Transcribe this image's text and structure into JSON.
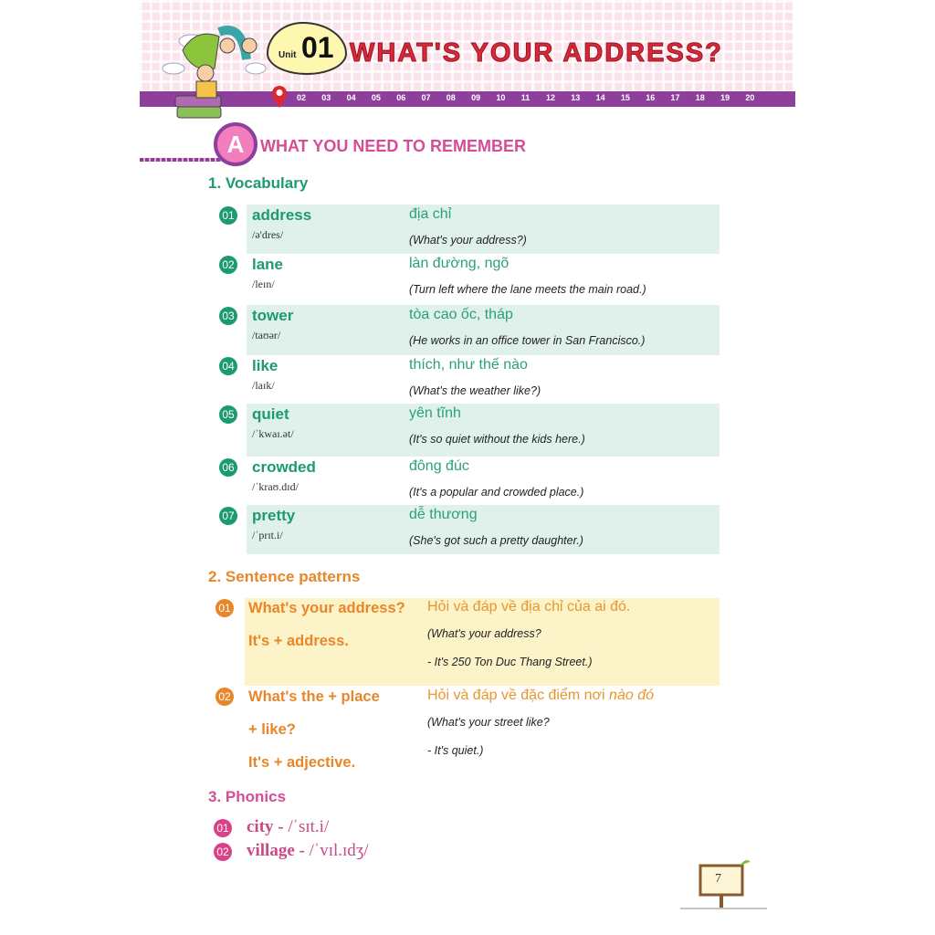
{
  "header": {
    "unit_word": "Unit",
    "unit_number": "01",
    "title": "WHAT'S YOUR ADDRESS?",
    "timeline": [
      "02",
      "03",
      "04",
      "05",
      "06",
      "07",
      "08",
      "09",
      "10",
      "11",
      "12",
      "13",
      "14",
      "15",
      "16",
      "17",
      "18",
      "19",
      "20"
    ],
    "accent_colors": {
      "pink": "#d44d96",
      "purple": "#8e3f9c",
      "red": "#d42a3a"
    }
  },
  "section": {
    "letter": "A",
    "title": "WHAT YOU NEED TO REMEMBER"
  },
  "vocabulary": {
    "heading": "1. Vocabulary",
    "color": "#1c9a72",
    "items": [
      {
        "num": "01",
        "word": "address",
        "ipa": "/ə'dres/",
        "meaning": "địa chỉ",
        "example": "(What's your address?)"
      },
      {
        "num": "02",
        "word": "lane",
        "ipa": "/leɪn/",
        "meaning": "làn đường, ngõ",
        "example": "(Turn left where the lane meets the main road.)"
      },
      {
        "num": "03",
        "word": "tower",
        "ipa": "/taʊər/",
        "meaning": "tòa cao ốc, tháp",
        "example": "(He works in an office tower in San Francisco.)"
      },
      {
        "num": "04",
        "word": "like",
        "ipa": "/laɪk/",
        "meaning": "thích, như thế nào",
        "example": "(What's the weather like?)"
      },
      {
        "num": "05",
        "word": "quiet",
        "ipa": "/ˈkwaɪ.ət/",
        "meaning": "yên tĩnh",
        "example": "(It's so quiet without the kids here.)"
      },
      {
        "num": "06",
        "word": "crowded",
        "ipa": "/ˈkraʊ.dɪd/",
        "meaning": "đông đúc",
        "example": "(It's a popular and crowded place.)"
      },
      {
        "num": "07",
        "word": "pretty",
        "ipa": "/ˈprɪt.i/",
        "meaning": "dễ thương",
        "example": "(She's got such a pretty daughter.)"
      }
    ]
  },
  "sentence_patterns": {
    "heading": "2. Sentence patterns",
    "color": "#e8862a",
    "items": [
      {
        "num": "01",
        "lines": [
          "What's your address?",
          "It's + address."
        ],
        "meaning": "Hỏi và đáp về địa chỉ của ai đó.",
        "examples": [
          "(What's your address?",
          "- It's 250 Ton Duc Thang Street.)"
        ]
      },
      {
        "num": "02",
        "lines": [
          "What's the + place",
          "+ like?",
          "It's + adjective."
        ],
        "meaning": "Hỏi và đáp về đặc điểm nơi ",
        "meaning_italic": "nào đó",
        "examples": [
          "(What's your street like?",
          "- It's quiet.)"
        ]
      }
    ]
  },
  "phonics": {
    "heading": "3. Phonics",
    "color": "#d44d96",
    "items": [
      {
        "num": "01",
        "word": "city - ",
        "ipa": " /ˈsɪt.i/"
      },
      {
        "num": "02",
        "word": "village - ",
        "ipa": "/ˈvɪl.ɪdʒ/"
      }
    ]
  },
  "page_number": "7"
}
